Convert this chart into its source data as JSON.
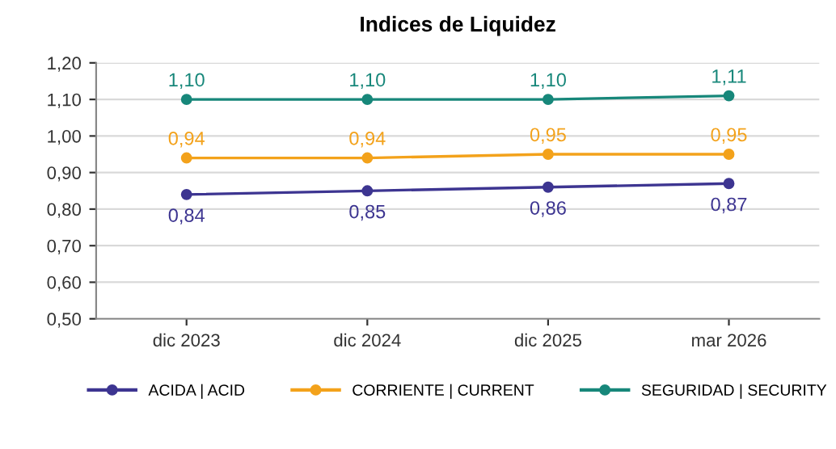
{
  "chart_data": {
    "type": "line",
    "title": "Indices de Liquidez",
    "categories": [
      "dic 2023",
      "dic 2024",
      "dic 2025",
      "mar 2026"
    ],
    "series": [
      {
        "name": "ACIDA | ACID",
        "color": "#3d3591",
        "values": [
          0.84,
          0.85,
          0.86,
          0.87
        ],
        "value_labels": [
          "0,84",
          "0,85",
          "0,86",
          "0,87"
        ]
      },
      {
        "name": "CORRIENTE | CURRENT",
        "color": "#f3a21b",
        "values": [
          0.94,
          0.94,
          0.95,
          0.95
        ],
        "value_labels": [
          "0,94",
          "0,94",
          "0,95",
          "0,95"
        ]
      },
      {
        "name": "SEGURIDAD | SECURITY",
        "color": "#17877a",
        "values": [
          1.1,
          1.1,
          1.1,
          1.11
        ],
        "value_labels": [
          "1,10",
          "1,10",
          "1,10",
          "1,11"
        ]
      }
    ],
    "ylim": [
      0.5,
      1.2
    ],
    "yticks": [
      {
        "value": 0.5,
        "label": "0,50"
      },
      {
        "value": 0.6,
        "label": "0,60"
      },
      {
        "value": 0.7,
        "label": "0,70"
      },
      {
        "value": 0.8,
        "label": "0,80"
      },
      {
        "value": 0.9,
        "label": "0,90"
      },
      {
        "value": 1.0,
        "label": "1,00"
      },
      {
        "value": 1.1,
        "label": "1,10"
      },
      {
        "value": 1.2,
        "label": "1,20"
      }
    ],
    "grid": "y",
    "legend": "bottom",
    "marker": "circle",
    "line_style": "solid"
  }
}
